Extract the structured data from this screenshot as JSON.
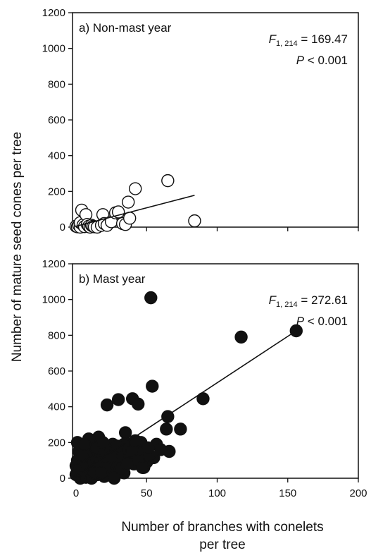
{
  "chart_data": [
    {
      "type": "scatter",
      "panel_label": "a) Non-mast year",
      "stat_letter": "F",
      "stat_df": "1, 214",
      "stat_value": " = 169.47",
      "p_letter": "P",
      "p_value": " < 0.001",
      "xlim": [
        0,
        200
      ],
      "ylim": [
        0,
        1200
      ],
      "x_ticks": [
        "0",
        "50",
        "100",
        "150",
        "200"
      ],
      "x_ticks_shown": false,
      "y_ticks": [
        "0",
        "200",
        "400",
        "600",
        "800",
        "1000",
        "1200"
      ],
      "marker": "open-circle",
      "points": [
        [
          0,
          5
        ],
        [
          1,
          2
        ],
        [
          2,
          10
        ],
        [
          3,
          0
        ],
        [
          3,
          25
        ],
        [
          4,
          95
        ],
        [
          5,
          12
        ],
        [
          6,
          3
        ],
        [
          7,
          70
        ],
        [
          8,
          15
        ],
        [
          9,
          5
        ],
        [
          10,
          0
        ],
        [
          11,
          10
        ],
        [
          12,
          5
        ],
        [
          13,
          2
        ],
        [
          15,
          0
        ],
        [
          18,
          10
        ],
        [
          19,
          70
        ],
        [
          20,
          20
        ],
        [
          22,
          10
        ],
        [
          25,
          30
        ],
        [
          28,
          80
        ],
        [
          30,
          85
        ],
        [
          33,
          20
        ],
        [
          35,
          15
        ],
        [
          37,
          140
        ],
        [
          38,
          50
        ],
        [
          42,
          215
        ],
        [
          65,
          260
        ],
        [
          84,
          35
        ]
      ],
      "fit_line": {
        "x": [
          0,
          84
        ],
        "y": [
          5,
          178
        ]
      }
    },
    {
      "type": "scatter",
      "panel_label": "b) Mast year",
      "stat_letter": "F",
      "stat_df": "1, 214",
      "stat_value": " = 272.61",
      "p_letter": "P",
      "p_value": " < 0.001",
      "xlim": [
        0,
        200
      ],
      "ylim": [
        0,
        1200
      ],
      "x_ticks": [
        "0",
        "50",
        "100",
        "150",
        "200"
      ],
      "x_ticks_shown": true,
      "y_ticks": [
        "0",
        "200",
        "400",
        "600",
        "800",
        "1000",
        "1200"
      ],
      "marker": "filled-circle",
      "points": [
        [
          53,
          1010
        ],
        [
          156,
          825
        ],
        [
          117,
          790
        ],
        [
          54,
          515
        ],
        [
          90,
          445
        ],
        [
          22,
          410
        ],
        [
          30,
          440
        ],
        [
          40,
          445
        ],
        [
          44,
          415
        ],
        [
          65,
          345
        ],
        [
          64,
          275
        ],
        [
          74,
          275
        ],
        [
          35,
          255
        ],
        [
          66,
          150
        ],
        [
          55,
          115
        ],
        [
          1,
          200
        ],
        [
          2,
          150
        ],
        [
          3,
          100
        ],
        [
          4,
          50
        ],
        [
          5,
          180
        ],
        [
          6,
          120
        ],
        [
          7,
          80
        ],
        [
          8,
          30
        ],
        [
          9,
          160
        ],
        [
          10,
          110
        ],
        [
          11,
          60
        ],
        [
          12,
          200
        ],
        [
          13,
          140
        ],
        [
          14,
          90
        ],
        [
          15,
          20
        ],
        [
          16,
          230
        ],
        [
          17,
          170
        ],
        [
          18,
          120
        ],
        [
          19,
          70
        ],
        [
          20,
          10
        ],
        [
          21,
          180
        ],
        [
          23,
          130
        ],
        [
          24,
          80
        ],
        [
          25,
          40
        ],
        [
          26,
          190
        ],
        [
          27,
          150
        ],
        [
          28,
          100
        ],
        [
          29,
          60
        ],
        [
          31,
          170
        ],
        [
          32,
          120
        ],
        [
          33,
          70
        ],
        [
          34,
          30
        ],
        [
          36,
          160
        ],
        [
          37,
          110
        ],
        [
          38,
          190
        ],
        [
          39,
          140
        ],
        [
          41,
          80
        ],
        [
          43,
          180
        ],
        [
          45,
          120
        ],
        [
          46,
          200
        ],
        [
          48,
          150
        ],
        [
          50,
          90
        ],
        [
          52,
          130
        ],
        [
          57,
          190
        ],
        [
          60,
          160
        ],
        [
          0,
          20
        ],
        [
          0,
          70
        ],
        [
          1,
          100
        ],
        [
          2,
          30
        ],
        [
          3,
          180
        ],
        [
          5,
          60
        ],
        [
          6,
          10
        ],
        [
          8,
          140
        ],
        [
          10,
          20
        ],
        [
          12,
          90
        ],
        [
          14,
          170
        ],
        [
          16,
          40
        ],
        [
          18,
          60
        ],
        [
          20,
          140
        ],
        [
          22,
          100
        ],
        [
          24,
          160
        ],
        [
          26,
          30
        ],
        [
          28,
          170
        ],
        [
          30,
          120
        ],
        [
          32,
          50
        ],
        [
          34,
          190
        ],
        [
          36,
          80
        ],
        [
          40,
          150
        ],
        [
          44,
          100
        ],
        [
          48,
          60
        ],
        [
          3,
          0
        ],
        [
          7,
          5
        ],
        [
          11,
          0
        ],
        [
          15,
          100
        ],
        [
          19,
          200
        ],
        [
          23,
          50
        ],
        [
          27,
          0
        ],
        [
          9,
          220
        ],
        [
          13,
          30
        ],
        [
          17,
          90
        ],
        [
          21,
          60
        ],
        [
          25,
          120
        ],
        [
          29,
          180
        ],
        [
          4,
          130
        ],
        [
          1,
          40
        ],
        [
          6,
          190
        ],
        [
          42,
          210
        ],
        [
          47,
          60
        ],
        [
          51,
          170
        ],
        [
          18,
          30
        ]
      ],
      "fit_line": {
        "x": [
          0,
          156
        ],
        "y": [
          15,
          825
        ]
      }
    }
  ],
  "ylabel": "Number of mature seed cones per tree",
  "xlabel_line1": "Number of branches with conelets",
  "xlabel_line2": "per tree"
}
